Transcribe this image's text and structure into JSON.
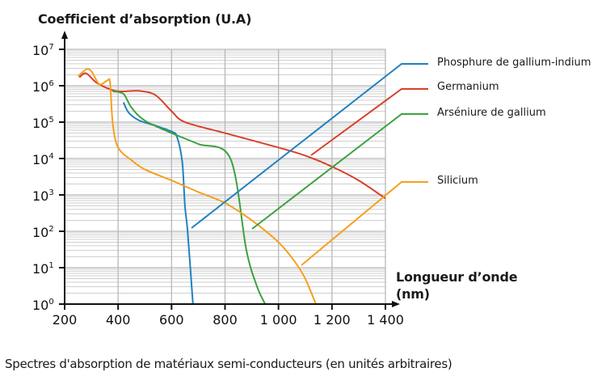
{
  "chart_data": {
    "type": "line",
    "title": "Spectres d'absorption de matériaux semi-conducteurs (en unités arbitraires)",
    "xlabel": "Longueur d’onde (nm)",
    "ylabel": "Coefficient d’absorption (U.A)",
    "xlim": [
      200,
      1400
    ],
    "ylim": [
      1,
      10000000
    ],
    "yscale": "log",
    "grid": true,
    "legend_position": "right",
    "x_ticks": [
      "200",
      "400",
      "600",
      "800",
      "1 000",
      "1 200",
      "1 400"
    ],
    "y_ticks": [
      "10^0",
      "10^1",
      "10^2",
      "10^3",
      "10^4",
      "10^5",
      "10^6",
      "10^7"
    ],
    "series": [
      {
        "name": "Phosphure de gallium-indium",
        "color": "#1f82bf",
        "points": [
          [
            420,
            350000
          ],
          [
            440,
            180000
          ],
          [
            480,
            110000
          ],
          [
            540,
            80000
          ],
          [
            600,
            55000
          ],
          [
            620,
            40000
          ],
          [
            640,
            8000
          ],
          [
            650,
            500
          ],
          [
            660,
            100
          ],
          [
            680,
            1
          ]
        ]
      },
      {
        "name": "Germanium",
        "color": "#d8402a",
        "points": [
          [
            255,
            1700000
          ],
          [
            280,
            2200000
          ],
          [
            320,
            1200000
          ],
          [
            380,
            750000
          ],
          [
            420,
            700000
          ],
          [
            480,
            720000
          ],
          [
            540,
            550000
          ],
          [
            600,
            200000
          ],
          [
            650,
            100000
          ],
          [
            800,
            50000
          ],
          [
            1000,
            20000
          ],
          [
            1100,
            12000
          ],
          [
            1200,
            6000
          ],
          [
            1300,
            2500
          ],
          [
            1400,
            800
          ]
        ]
      },
      {
        "name": "Arséniure de gallium",
        "color": "#3da13f",
        "points": [
          [
            380,
            700000
          ],
          [
            420,
            600000
          ],
          [
            450,
            250000
          ],
          [
            500,
            110000
          ],
          [
            600,
            50000
          ],
          [
            700,
            25000
          ],
          [
            820,
            10000
          ],
          [
            880,
            30
          ],
          [
            920,
            3
          ],
          [
            950,
            1
          ]
        ]
      },
      {
        "name": "Silicium",
        "color": "#f5a01e",
        "points": [
          [
            250,
            1800000
          ],
          [
            280,
            2800000
          ],
          [
            300,
            2500000
          ],
          [
            330,
            1100000
          ],
          [
            360,
            1400000
          ],
          [
            370,
            1200000
          ],
          [
            380,
            90000
          ],
          [
            400,
            20000
          ],
          [
            450,
            9000
          ],
          [
            500,
            5000
          ],
          [
            600,
            2500
          ],
          [
            700,
            1200
          ],
          [
            800,
            600
          ],
          [
            900,
            200
          ],
          [
            1000,
            50
          ],
          [
            1060,
            15
          ],
          [
            1100,
            5
          ],
          [
            1140,
            1
          ]
        ]
      }
    ]
  },
  "axes": {
    "ylabel": "Coefficient d’absorption (U.A)",
    "xlabel_line1": "Longueur d’onde",
    "xlabel_line2": "(nm)"
  },
  "legend": [
    {
      "label": "Phosphure de gallium-indium",
      "color": "#1f82bf"
    },
    {
      "label": "Germanium",
      "color": "#d8402a"
    },
    {
      "label": "Arséniure de gallium",
      "color": "#3da13f"
    },
    {
      "label": "Silicium",
      "color": "#f5a01e"
    }
  ],
  "caption": "Spectres d'absorption de matériaux semi-conducteurs (en unités arbitraires)"
}
